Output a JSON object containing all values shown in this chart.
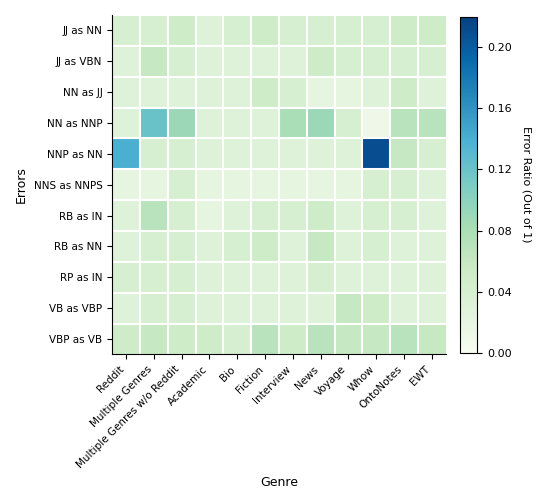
{
  "errors": [
    "JJ as NN",
    "JJ as VBN",
    "NN as JJ",
    "NN as NNP",
    "NNP as NN",
    "NNS as NNPS",
    "RB as IN",
    "RB as NN",
    "RP as IN",
    "VB as VBP",
    "VBP as VB"
  ],
  "genres": [
    "Reddit",
    "Multiple Genres",
    "Multiple Genres w/o Reddit",
    "Academic",
    "Bio",
    "Fiction",
    "Interview",
    "News",
    "Voyage",
    "Whow",
    "OntoNotes",
    "EWT"
  ],
  "data": [
    [
      0.04,
      0.04,
      0.05,
      0.03,
      0.04,
      0.05,
      0.04,
      0.04,
      0.04,
      0.04,
      0.05,
      0.05
    ],
    [
      0.03,
      0.06,
      0.04,
      0.03,
      0.03,
      0.03,
      0.03,
      0.05,
      0.04,
      0.04,
      0.04,
      0.04
    ],
    [
      0.03,
      0.03,
      0.03,
      0.03,
      0.03,
      0.05,
      0.04,
      0.02,
      0.02,
      0.03,
      0.05,
      0.03
    ],
    [
      0.03,
      0.12,
      0.09,
      0.03,
      0.03,
      0.03,
      0.08,
      0.09,
      0.04,
      0.01,
      0.07,
      0.07
    ],
    [
      0.14,
      0.04,
      0.04,
      0.03,
      0.03,
      0.03,
      0.03,
      0.03,
      0.03,
      0.21,
      0.06,
      0.04
    ],
    [
      0.02,
      0.02,
      0.04,
      0.02,
      0.02,
      0.02,
      0.02,
      0.02,
      0.02,
      0.04,
      0.04,
      0.03
    ],
    [
      0.03,
      0.07,
      0.04,
      0.02,
      0.03,
      0.04,
      0.04,
      0.05,
      0.03,
      0.04,
      0.04,
      0.03
    ],
    [
      0.03,
      0.04,
      0.04,
      0.03,
      0.04,
      0.05,
      0.03,
      0.06,
      0.03,
      0.04,
      0.03,
      0.03
    ],
    [
      0.04,
      0.04,
      0.04,
      0.03,
      0.03,
      0.03,
      0.03,
      0.04,
      0.03,
      0.03,
      0.03,
      0.03
    ],
    [
      0.03,
      0.04,
      0.04,
      0.03,
      0.03,
      0.03,
      0.03,
      0.03,
      0.06,
      0.05,
      0.03,
      0.03
    ],
    [
      0.05,
      0.06,
      0.05,
      0.05,
      0.04,
      0.07,
      0.05,
      0.07,
      0.06,
      0.06,
      0.07,
      0.06
    ]
  ],
  "vmin": 0.0,
  "vmax": 0.22,
  "cmap": "GnBu",
  "xlabel": "Genre",
  "ylabel": "Errors",
  "colorbar_label": "Error Ratio (Out of 1)",
  "colorbar_ticks": [
    0.0,
    0.04,
    0.08,
    0.12,
    0.16,
    0.2
  ],
  "figsize": [
    5.46,
    5.04
  ],
  "dpi": 100,
  "xlabel_fontsize": 9,
  "ylabel_fontsize": 9,
  "tick_fontsize": 7.5,
  "cbar_fontsize": 8
}
